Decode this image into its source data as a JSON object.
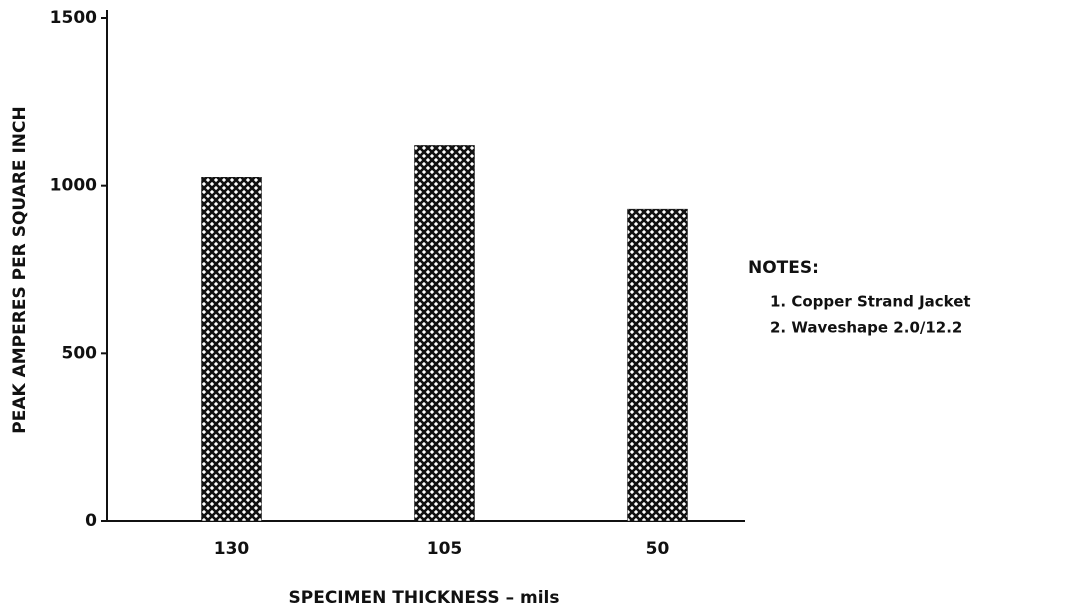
{
  "chart_data": {
    "type": "bar",
    "ylabel": "PEAK AMPERES PER SQUARE INCH",
    "xlabel": "SPECIMEN THICKNESS – mils",
    "categories": [
      "130",
      "105",
      "50"
    ],
    "values": [
      1025,
      1120,
      930
    ],
    "color": "#111111",
    "ylim": [
      0,
      1500
    ],
    "yticks": [
      0,
      500,
      1000,
      1500
    ],
    "annotations": [
      "NOTES:",
      "1.  Copper Strand Jacket",
      "2.  Waveshape 2.0/12.2"
    ]
  }
}
